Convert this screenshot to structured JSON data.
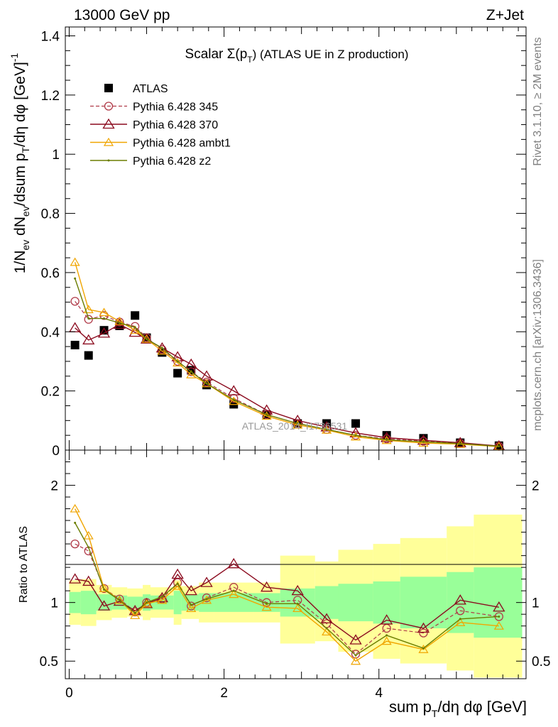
{
  "header": {
    "left": "13000 GeV pp",
    "right": "Z+Jet"
  },
  "side_labels": {
    "rivet": "Rivet 3.1.10, ≥ 2M events",
    "mcplots": "mcplots.cern.ch [arXiv:1306.3436]"
  },
  "watermark": "ATLAS_2014_I1736531",
  "colors": {
    "atlas": "#000000",
    "p345": "#b03a48",
    "p370": "#8b0a1e",
    "ambt1": "#f0a500",
    "z2": "#6b7d00",
    "band_inner": "#99ff99",
    "band_outer": "#ffff99"
  },
  "chart_data": [
    {
      "type": "scatter",
      "title": "Scalar Σ(p_T) (ATLAS UE in Z production)",
      "title_parts": {
        "a": "Scalar ",
        "b": "Σ(p",
        "c": "T",
        "d": ") (ATLAS UE in Z production)"
      },
      "ylabel": "1/N_ev dN_ev/dsum p_T/dη dφ [GeV]^-1",
      "ylabel_parts": {
        "a": "1/N",
        "b": "ev",
        "c": " dN",
        "d": "ev",
        "e": "/dsum p",
        "f": "T",
        "g": "/dη dφ  [GeV]",
        "h": "-1"
      },
      "xlim": [
        -0.05,
        5.9
      ],
      "ylim": [
        0,
        1.43
      ],
      "y_ticks": [
        0,
        0.2,
        0.4,
        0.6,
        0.8,
        1,
        1.2,
        1.4
      ],
      "y_tick_labels": [
        "0",
        "0.2",
        "0.4",
        "0.6",
        "0.8",
        "1",
        "1.2",
        "1.4"
      ],
      "x": [
        0.075,
        0.25,
        0.45,
        0.65,
        0.85,
        1.0,
        1.2,
        1.4,
        1.575,
        1.775,
        2.125,
        2.55,
        2.95,
        3.325,
        3.7,
        4.1,
        4.575,
        5.05,
        5.55
      ],
      "series": [
        {
          "name": "ATLAS",
          "key": "atlas",
          "values": [
            0.355,
            0.32,
            0.405,
            0.42,
            0.455,
            0.38,
            0.33,
            0.26,
            0.27,
            0.22,
            0.155,
            0.12,
            0.09,
            0.09,
            0.09,
            0.05,
            0.04,
            0.025,
            0.015
          ]
        },
        {
          "name": "Pythia 6.428 345",
          "key": "p345",
          "values": [
            0.503,
            0.442,
            0.455,
            0.433,
            0.418,
            0.38,
            0.34,
            0.3,
            0.265,
            0.23,
            0.175,
            0.12,
            0.09,
            0.07,
            0.05,
            0.038,
            0.03,
            0.023,
            0.013
          ]
        },
        {
          "name": "Pythia 6.428 370",
          "key": "p370",
          "values": [
            0.413,
            0.372,
            0.395,
            0.425,
            0.398,
            0.375,
            0.345,
            0.315,
            0.29,
            0.25,
            0.2,
            0.135,
            0.1,
            0.078,
            0.058,
            0.042,
            0.033,
            0.025,
            0.014
          ]
        },
        {
          "name": "Pythia 6.428 ambt1",
          "key": "ambt1",
          "values": [
            0.635,
            0.475,
            0.465,
            0.435,
            0.405,
            0.375,
            0.335,
            0.295,
            0.255,
            0.225,
            0.165,
            0.115,
            0.085,
            0.068,
            0.045,
            0.033,
            0.024,
            0.02,
            0.012
          ]
        },
        {
          "name": "Pythia 6.428 z2",
          "key": "z2",
          "values": [
            0.58,
            0.445,
            0.445,
            0.43,
            0.415,
            0.375,
            0.345,
            0.3,
            0.265,
            0.225,
            0.17,
            0.12,
            0.09,
            0.07,
            0.05,
            0.035,
            0.028,
            0.022,
            0.013
          ]
        }
      ],
      "legend_position": "top-left"
    },
    {
      "type": "line",
      "ylabel": "Ratio to ATLAS",
      "xlabel": "sum p_T/dη dφ [GeV]",
      "xlabel_parts": {
        "a": "sum p",
        "b": "T",
        "c": "/dη dφ [GeV]"
      },
      "xlim": [
        -0.05,
        5.9
      ],
      "ylim": [
        0.35,
        2.3
      ],
      "x_ticks": [
        0,
        2,
        4
      ],
      "x_tick_labels": [
        "0",
        "2",
        "4"
      ],
      "y_ticks": [
        0.5,
        1,
        2
      ],
      "y_tick_labels": [
        "0.5",
        "1",
        "2"
      ],
      "reference": 1,
      "bin_edges": [
        0,
        0.15,
        0.35,
        0.55,
        0.75,
        0.95,
        1.05,
        1.35,
        1.45,
        1.675,
        1.875,
        2.375,
        2.725,
        3.175,
        3.475,
        3.925,
        4.275,
        4.875,
        5.225,
        5.85
      ],
      "band_inner": [
        [
          0.91,
          1.09
        ],
        [
          0.9,
          1.1
        ],
        [
          0.93,
          1.07
        ],
        [
          0.94,
          1.06
        ],
        [
          0.95,
          1.05
        ],
        [
          0.93,
          1.07
        ],
        [
          0.94,
          1.06
        ],
        [
          0.9,
          1.1
        ],
        [
          0.93,
          1.07
        ],
        [
          0.92,
          1.08
        ],
        [
          0.92,
          1.08
        ],
        [
          0.92,
          1.08
        ],
        [
          0.88,
          1.12
        ],
        [
          0.86,
          1.14
        ],
        [
          0.84,
          1.16
        ],
        [
          0.82,
          1.18
        ],
        [
          0.78,
          1.22
        ],
        [
          0.74,
          1.26
        ],
        [
          0.7,
          1.3
        ]
      ],
      "band_outer": [
        [
          0.81,
          1.19
        ],
        [
          0.8,
          1.2
        ],
        [
          0.85,
          1.15
        ],
        [
          0.87,
          1.13
        ],
        [
          0.88,
          1.12
        ],
        [
          0.85,
          1.15
        ],
        [
          0.87,
          1.13
        ],
        [
          0.81,
          1.19
        ],
        [
          0.86,
          1.14
        ],
        [
          0.83,
          1.17
        ],
        [
          0.83,
          1.17
        ],
        [
          0.83,
          1.17
        ],
        [
          0.65,
          1.4
        ],
        [
          0.67,
          1.35
        ],
        [
          0.58,
          1.45
        ],
        [
          0.52,
          1.5
        ],
        [
          0.48,
          1.55
        ],
        [
          0.42,
          1.65
        ],
        [
          0.36,
          1.75
        ]
      ],
      "series": [
        {
          "name": "Pythia 6.428 345",
          "key": "p345",
          "values": [
            1.5,
            1.44,
            1.12,
            1.03,
            0.92,
            1.0,
            1.03,
            1.17,
            0.97,
            1.04,
            1.13,
            1.0,
            1.02,
            0.82,
            0.56,
            0.78,
            0.74,
            0.93,
            0.88
          ]
        },
        {
          "name": "Pythia 6.428 370",
          "key": "p370",
          "values": [
            1.2,
            1.18,
            0.97,
            1.01,
            0.93,
            0.99,
            1.04,
            1.24,
            1.1,
            1.17,
            1.33,
            1.13,
            1.1,
            0.86,
            0.68,
            0.85,
            0.78,
            1.02,
            0.96
          ]
        },
        {
          "name": "Pythia 6.428 ambt1",
          "key": "ambt1",
          "values": [
            1.8,
            1.57,
            1.12,
            1.02,
            0.89,
            0.99,
            1.02,
            1.14,
            0.95,
            1.02,
            1.07,
            0.96,
            0.95,
            0.75,
            0.5,
            0.67,
            0.6,
            0.83,
            0.8
          ]
        },
        {
          "name": "Pythia 6.428 z2",
          "key": "z2",
          "values": [
            1.68,
            1.47,
            1.11,
            1.02,
            0.91,
            1.0,
            1.05,
            1.16,
            0.98,
            1.03,
            1.1,
            0.99,
            0.99,
            0.78,
            0.55,
            0.72,
            0.61,
            0.86,
            0.88
          ]
        }
      ]
    }
  ]
}
